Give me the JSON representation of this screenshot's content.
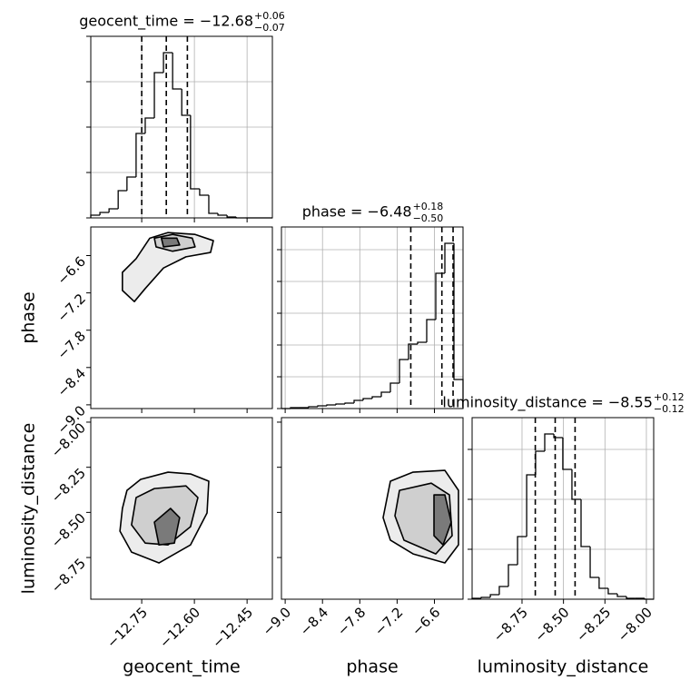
{
  "chart_data": [
    {
      "type": "histogram",
      "title": "geocent_time = −12.68",
      "title_upper": "+0.06",
      "title_lower": "−0.07",
      "bins": [
        -12.895,
        -12.869,
        -12.843,
        -12.817,
        -12.792,
        -12.766,
        -12.74,
        -12.714,
        -12.688,
        -12.662,
        -12.636,
        -12.611,
        -12.585,
        -12.559,
        -12.533,
        -12.507,
        -12.481,
        -12.455,
        -12.43,
        -12.404,
        -12.378
      ],
      "values": [
        3,
        6,
        10,
        30,
        45,
        93,
        110,
        160,
        182,
        142,
        113,
        32,
        25,
        5,
        3,
        1,
        0,
        0,
        0,
        0
      ],
      "quantiles": [
        -12.75,
        -12.68,
        -12.62
      ],
      "color": "#000000",
      "xlim": [
        -12.895,
        -12.378
      ],
      "ylim": [
        0,
        200
      ],
      "xticks": [
        -12.75,
        -12.6,
        -12.45
      ],
      "yticks": [
        0,
        50,
        100,
        150,
        200
      ],
      "grid": true
    },
    {
      "type": "contour",
      "ylabel": "phase",
      "color": "#000000",
      "contour_fills": [
        "#ececec",
        "#cfcfcf",
        "#7a7a7a"
      ],
      "contours": [
        {
          "x": [
            -12.805,
            -12.766,
            -12.727,
            -12.675,
            -12.598,
            -12.546,
            -12.554,
            -12.624,
            -12.688,
            -12.74,
            -12.771,
            -12.805
          ],
          "y": [
            -6.87,
            -6.65,
            -6.32,
            -6.23,
            -6.26,
            -6.36,
            -6.55,
            -6.62,
            -6.8,
            -7.13,
            -7.34,
            -7.16
          ]
        },
        {
          "x": [
            -12.714,
            -12.662,
            -12.606,
            -12.598,
            -12.662,
            -12.709
          ],
          "y": [
            -6.32,
            -6.26,
            -6.32,
            -6.46,
            -6.53,
            -6.46
          ]
        },
        {
          "x": [
            -12.694,
            -12.65,
            -12.642,
            -12.688
          ],
          "y": [
            -6.32,
            -6.32,
            -6.43,
            -6.46
          ]
        }
      ],
      "xlim": [
        -12.895,
        -12.378
      ],
      "ylim": [
        -9.06,
        -6.14
      ],
      "xticks": [
        -12.75,
        -12.6,
        -12.45
      ],
      "yticks": [
        {
          "value": -9.0,
          "label": "−9.0"
        },
        {
          "value": -8.4,
          "label": "−8.4"
        },
        {
          "value": -7.8,
          "label": "−7.8"
        },
        {
          "value": -7.2,
          "label": "−7.2"
        },
        {
          "value": -6.6,
          "label": "−6.6"
        }
      ],
      "grid": false
    },
    {
      "type": "histogram",
      "title": "phase = −6.48",
      "title_upper": "+0.18",
      "title_lower": "−0.50",
      "bins": [
        -9.06,
        -8.914,
        -8.768,
        -8.622,
        -8.476,
        -8.33,
        -8.184,
        -8.038,
        -7.892,
        -7.746,
        -7.6,
        -7.454,
        -7.308,
        -7.162,
        -7.016,
        -6.87,
        -6.724,
        -6.578,
        -6.432,
        -6.286,
        -6.14
      ],
      "values": [
        0,
        1,
        1,
        2,
        3,
        4,
        5,
        6,
        9,
        11,
        13,
        18,
        28,
        54,
        71,
        73,
        98,
        149,
        182,
        32
      ],
      "quantiles": [
        -6.98,
        -6.48,
        -6.3
      ],
      "color": "#000000",
      "xlim": [
        -9.06,
        -6.14
      ],
      "ylim": [
        0,
        200
      ],
      "xticks": [
        -9.0,
        -8.4,
        -7.8,
        -7.2,
        -6.6
      ],
      "yticks": [
        0,
        35,
        70,
        105,
        140,
        175
      ],
      "grid": true
    },
    {
      "type": "contour",
      "xlabel": "geocent_time",
      "ylabel": "luminosity_distance",
      "color": "#000000",
      "contour_fills": [
        "#ececec",
        "#cfcfcf",
        "#7a7a7a"
      ],
      "contours": [
        {
          "x": [
            -12.792,
            -12.753,
            -12.675,
            -12.611,
            -12.559,
            -12.564,
            -12.611,
            -12.701,
            -12.779,
            -12.812,
            -12.805
          ],
          "y": [
            -8.378,
            -8.317,
            -8.277,
            -8.287,
            -8.327,
            -8.503,
            -8.68,
            -8.78,
            -8.72,
            -8.604,
            -8.478
          ]
        },
        {
          "x": [
            -12.766,
            -12.714,
            -12.624,
            -12.59,
            -12.611,
            -12.675,
            -12.74,
            -12.779
          ],
          "y": [
            -8.418,
            -8.368,
            -8.353,
            -8.418,
            -8.579,
            -8.68,
            -8.67,
            -8.569
          ]
        },
        {
          "x": [
            -12.714,
            -12.668,
            -12.642,
            -12.657,
            -12.701
          ],
          "y": [
            -8.554,
            -8.478,
            -8.529,
            -8.67,
            -8.68
          ]
        }
      ],
      "xlim": [
        -12.895,
        -12.378
      ],
      "ylim": [
        -8.981,
        -7.975
      ],
      "xticks": [
        {
          "value": -12.75,
          "label": "−12.75"
        },
        {
          "value": -12.6,
          "label": "−12.60"
        },
        {
          "value": -12.45,
          "label": "−12.45"
        }
      ],
      "yticks": [
        {
          "value": -8.75,
          "label": "−8.75"
        },
        {
          "value": -8.5,
          "label": "−8.50"
        },
        {
          "value": -8.25,
          "label": "−8.25"
        },
        {
          "value": -8.0,
          "label": "−8.00"
        }
      ],
      "grid": false
    },
    {
      "type": "contour",
      "xlabel": "phase",
      "color": "#000000",
      "contour_fills": [
        "#ececec",
        "#cfcfcf",
        "#7a7a7a"
      ],
      "contours": [
        {
          "x": [
            -7.308,
            -6.943,
            -6.432,
            -6.213,
            -6.213,
            -6.432,
            -6.943,
            -7.308,
            -7.425
          ],
          "y": [
            -8.327,
            -8.277,
            -8.267,
            -8.378,
            -8.68,
            -8.78,
            -8.73,
            -8.654,
            -8.529
          ]
        },
        {
          "x": [
            -7.162,
            -6.651,
            -6.359,
            -6.315,
            -6.578,
            -7.089,
            -7.235
          ],
          "y": [
            -8.378,
            -8.338,
            -8.403,
            -8.629,
            -8.73,
            -8.654,
            -8.519
          ]
        },
        {
          "x": [
            -6.607,
            -6.432,
            -6.33,
            -6.461,
            -6.607
          ],
          "y": [
            -8.403,
            -8.403,
            -8.554,
            -8.68,
            -8.629
          ]
        }
      ],
      "xlim": [
        -9.06,
        -6.14
      ],
      "ylim": [
        -8.981,
        -7.975
      ],
      "xticks": [
        {
          "value": -9.0,
          "label": "−9.0"
        },
        {
          "value": -8.4,
          "label": "−8.4"
        },
        {
          "value": -7.8,
          "label": "−7.8"
        },
        {
          "value": -7.2,
          "label": "−7.2"
        },
        {
          "value": -6.6,
          "label": "−6.6"
        }
      ],
      "yticks": [
        -8.75,
        -8.5,
        -8.25,
        -8.0
      ],
      "grid": false
    },
    {
      "type": "histogram",
      "title": "luminosity_distance = −8.55",
      "title_upper": "+0.12",
      "title_lower": "−0.12",
      "xlabel": "luminosity_distance",
      "bins": [
        -9.051,
        -8.996,
        -8.941,
        -8.887,
        -8.832,
        -8.777,
        -8.722,
        -8.668,
        -8.613,
        -8.558,
        -8.504,
        -8.449,
        -8.394,
        -8.339,
        -8.285,
        -8.23,
        -8.175,
        -8.12,
        -8.066,
        -8.011,
        -7.956
      ],
      "values": [
        1,
        2,
        5,
        14,
        38,
        69,
        137,
        163,
        182,
        178,
        143,
        110,
        58,
        24,
        12,
        6,
        3,
        1,
        1,
        0
      ],
      "quantiles": [
        -8.67,
        -8.55,
        -8.43
      ],
      "color": "#000000",
      "xlim": [
        -9.051,
        -7.956
      ],
      "ylim": [
        0,
        200
      ],
      "xticks": [
        {
          "value": -8.75,
          "label": "−8.75"
        },
        {
          "value": -8.5,
          "label": "−8.50"
        },
        {
          "value": -8.25,
          "label": "−8.25"
        },
        {
          "value": -8.0,
          "label": "−8.00"
        }
      ],
      "yticks": [
        0,
        55,
        110,
        165
      ],
      "grid": true
    }
  ]
}
